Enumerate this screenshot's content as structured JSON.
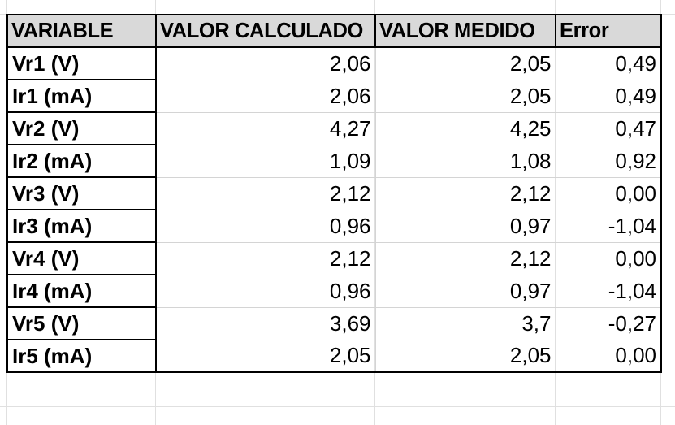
{
  "table": {
    "headers": [
      "VARIABLE",
      "VALOR CALCULADO",
      "VALOR MEDIDO",
      "Error"
    ],
    "rows": [
      [
        "Vr1 (V)",
        "2,06",
        "2,05",
        "0,49"
      ],
      [
        "Ir1 (mA)",
        "2,06",
        "2,05",
        "0,49"
      ],
      [
        "Vr2 (V)",
        "4,27",
        "4,25",
        "0,47"
      ],
      [
        "Ir2 (mA)",
        "1,09",
        "1,08",
        "0,92"
      ],
      [
        "Vr3 (V)",
        "2,12",
        "2,12",
        "0,00"
      ],
      [
        "Ir3 (mA)",
        "0,96",
        "0,97",
        "-1,04"
      ],
      [
        "Vr4 (V)",
        "2,12",
        "2,12",
        "0,00"
      ],
      [
        "Ir4 (mA)",
        "0,96",
        "0,97",
        "-1,04"
      ],
      [
        "Vr5 (V)",
        "3,69",
        "3,7",
        "-0,27"
      ],
      [
        "Ir5 (mA)",
        "2,05",
        "2,05",
        "0,00"
      ]
    ]
  }
}
